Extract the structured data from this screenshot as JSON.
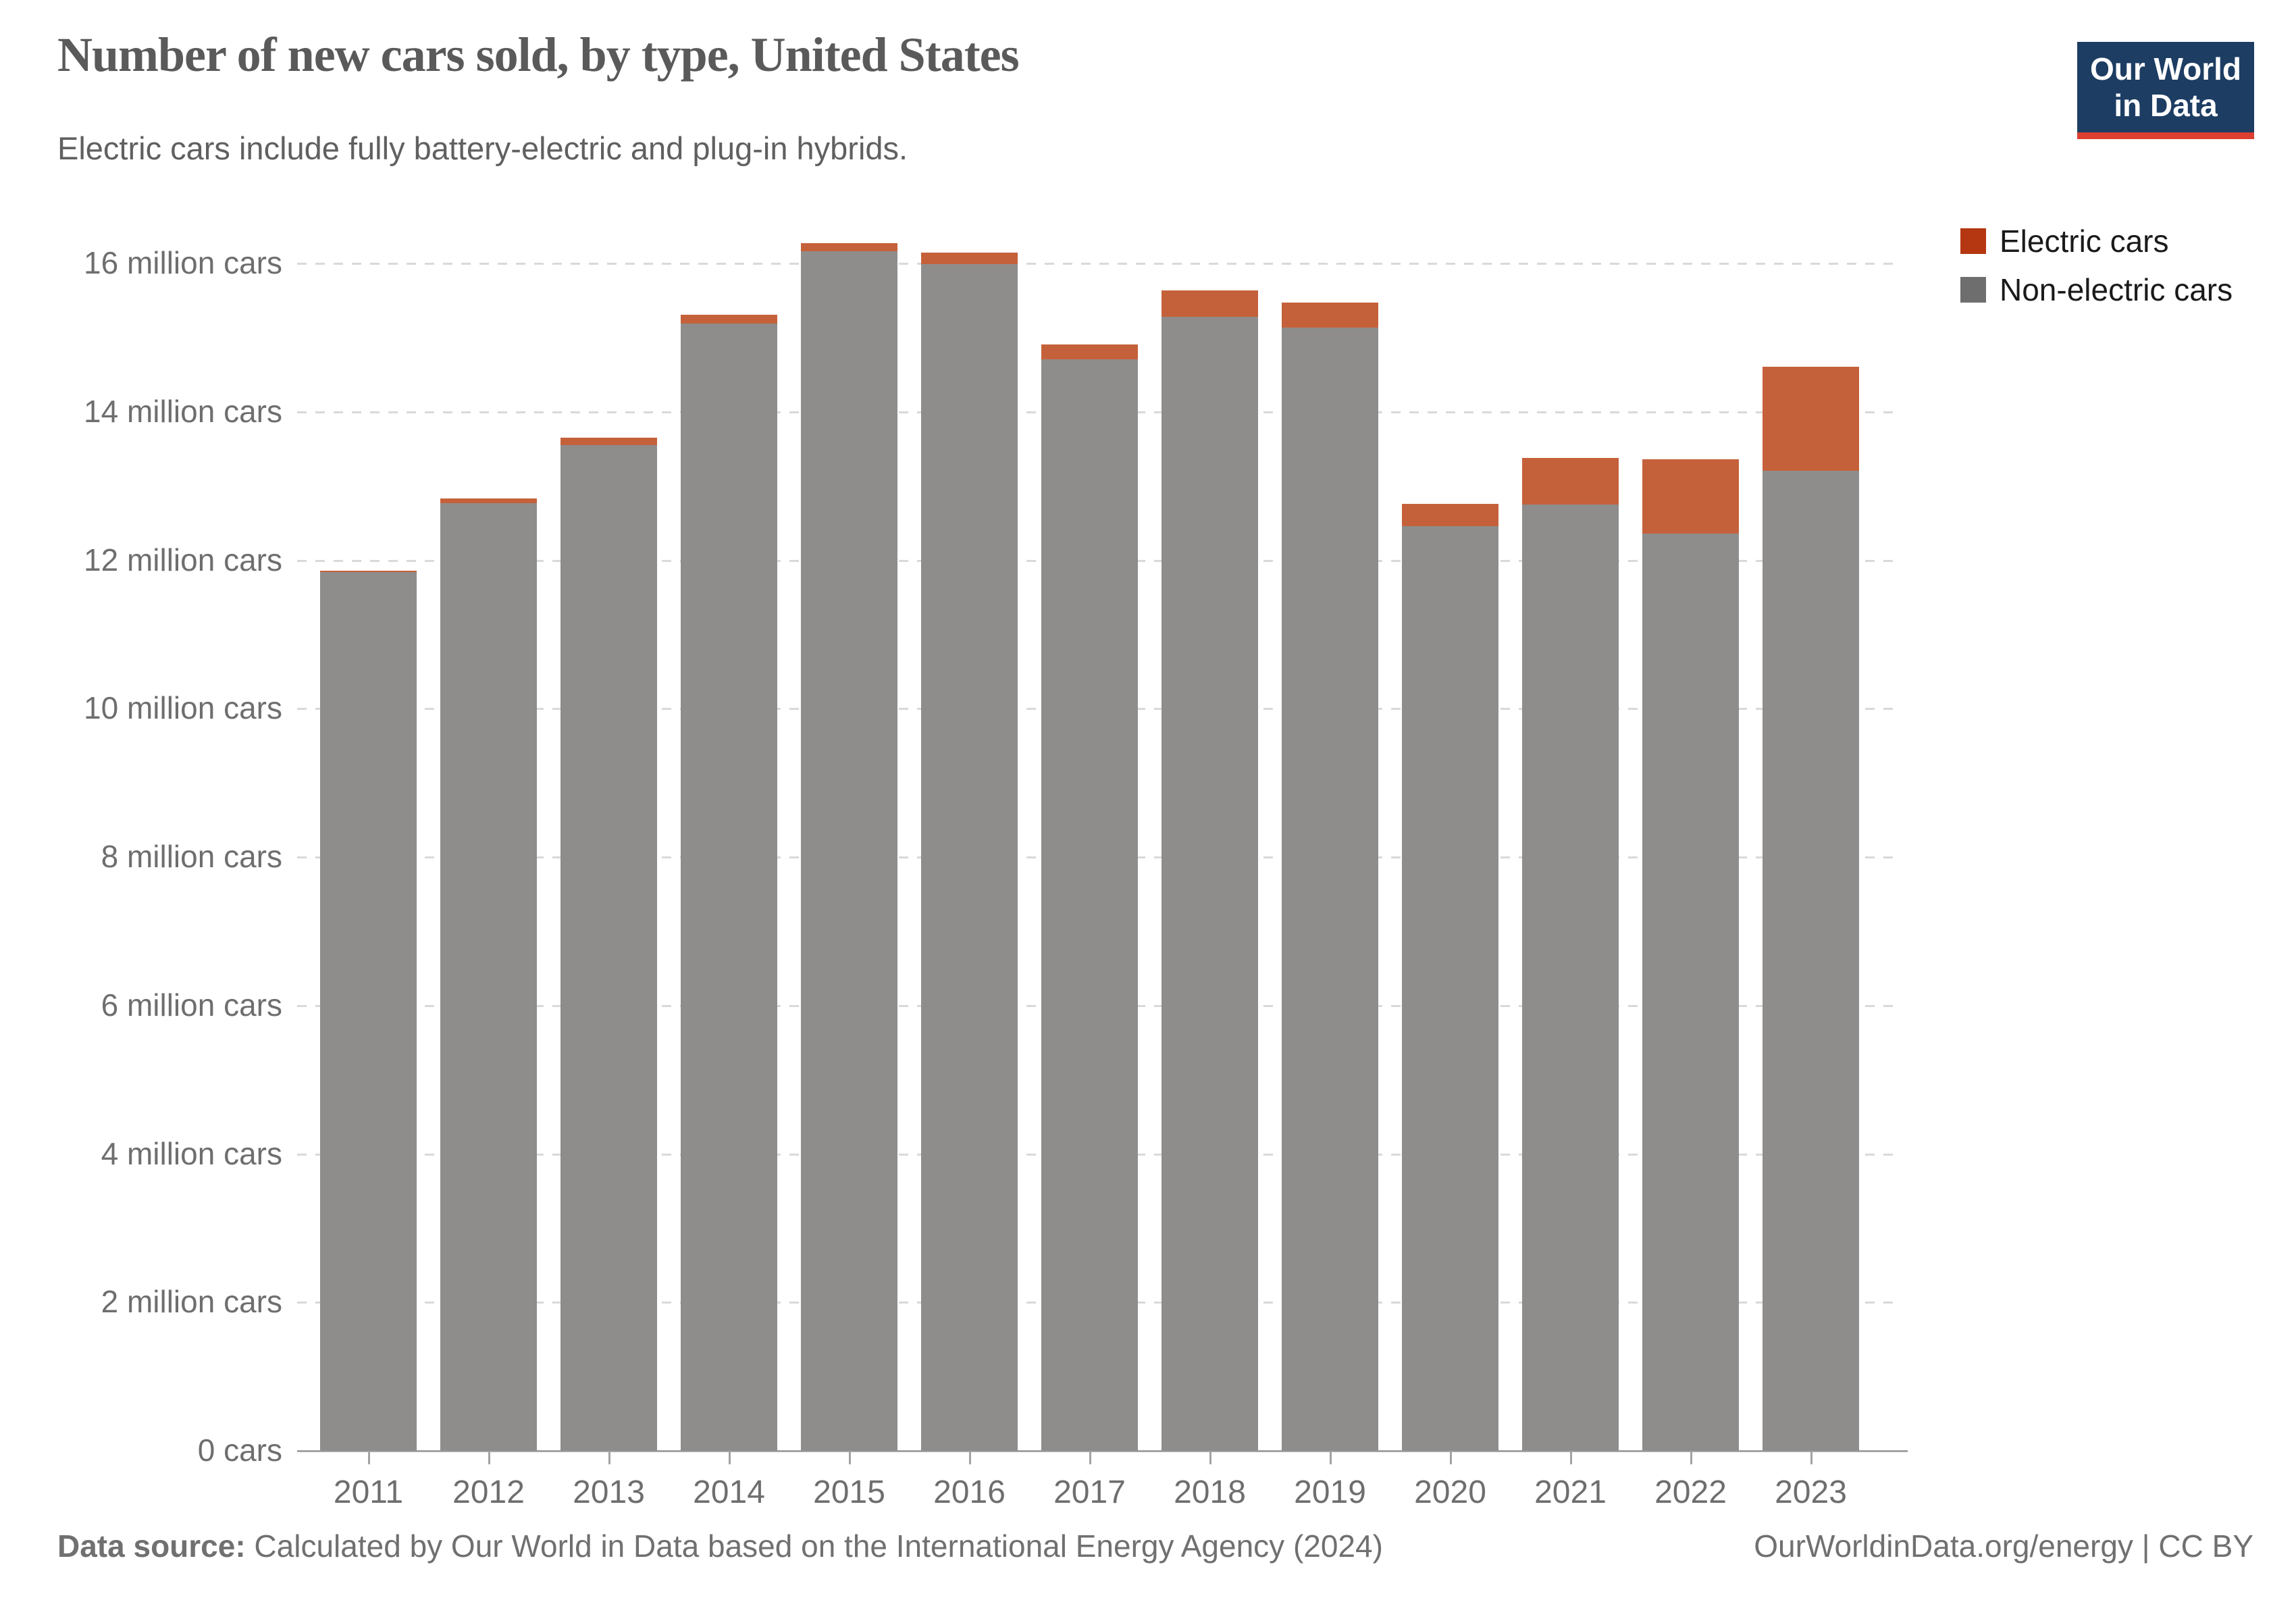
{
  "header": {
    "title": "Number of new cars sold, by type, United States",
    "subtitle": "Electric cars include fully battery-electric and plug-in hybrids."
  },
  "logo": {
    "line1": "Our World",
    "line2": "in Data"
  },
  "legend": {
    "items": [
      {
        "label": "Electric cars",
        "color": "#b43711"
      },
      {
        "label": "Non-electric cars",
        "color": "#6e6e6e"
      }
    ]
  },
  "chart_data": {
    "type": "bar",
    "stacked": true,
    "title": "Number of new cars sold, by type, United States",
    "subtitle": "Electric cars include fully battery-electric and plug-in hybrids.",
    "categories": [
      "2011",
      "2012",
      "2013",
      "2014",
      "2015",
      "2016",
      "2017",
      "2018",
      "2019",
      "2020",
      "2021",
      "2022",
      "2023"
    ],
    "series": [
      {
        "name": "Electric cars",
        "unit": "million cars",
        "color": "#c5613a",
        "values": [
          0.02,
          0.06,
          0.1,
          0.12,
          0.11,
          0.16,
          0.2,
          0.36,
          0.33,
          0.3,
          0.63,
          1.0,
          1.4
        ]
      },
      {
        "name": "Non-electric cars",
        "unit": "million cars",
        "color": "#8e8d8b",
        "values": [
          11.84,
          12.77,
          13.55,
          15.19,
          16.16,
          15.99,
          14.71,
          15.28,
          15.14,
          12.46,
          12.75,
          12.36,
          13.21
        ]
      }
    ],
    "totals": [
      11.86,
      12.83,
      13.65,
      15.31,
      16.27,
      16.15,
      14.91,
      15.64,
      15.47,
      12.76,
      13.38,
      13.36,
      14.61
    ],
    "ylim": [
      0,
      16
    ],
    "yticks": [
      {
        "value": 0,
        "label": "0 cars"
      },
      {
        "value": 2,
        "label": "2 million cars"
      },
      {
        "value": 4,
        "label": "4 million cars"
      },
      {
        "value": 6,
        "label": "6 million cars"
      },
      {
        "value": 8,
        "label": "8 million cars"
      },
      {
        "value": 10,
        "label": "10 million cars"
      },
      {
        "value": 12,
        "label": "12 million cars"
      },
      {
        "value": 14,
        "label": "14 million cars"
      },
      {
        "value": 16,
        "label": "16 million cars"
      }
    ],
    "grid": "horizontal-dashed",
    "legend_position": "right"
  },
  "footer": {
    "source_label": "Data source:",
    "source_text": " Calculated by Our World in Data based on the International Energy Agency (2024)",
    "right_text": "OurWorldinData.org/energy | CC BY"
  }
}
